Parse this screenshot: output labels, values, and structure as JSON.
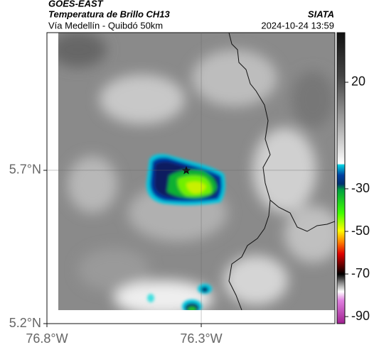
{
  "header": {
    "source": "GOES-EAST",
    "product": "Temperatura de Brillo CH13",
    "route": "Vía Medellín - Quibdó 50km",
    "agency": "SIATA",
    "timestamp": "2024-10-24 13:59"
  },
  "map": {
    "xlim": [
      -76.8,
      -75.867
    ],
    "ylim": [
      5.2,
      6.149
    ],
    "xticks": [
      {
        "value": -76.8,
        "label": "76.8°W"
      },
      {
        "value": -76.3,
        "label": "76.3°W"
      }
    ],
    "yticks": [
      {
        "value": 5.2,
        "label": "5.2°N"
      },
      {
        "value": 5.7,
        "label": "5.7°N"
      }
    ]
  },
  "colorbar": {
    "lim": [
      -93.3,
      43.3
    ],
    "ticks": [
      20,
      -30,
      -50,
      -70,
      -90
    ]
  }
}
